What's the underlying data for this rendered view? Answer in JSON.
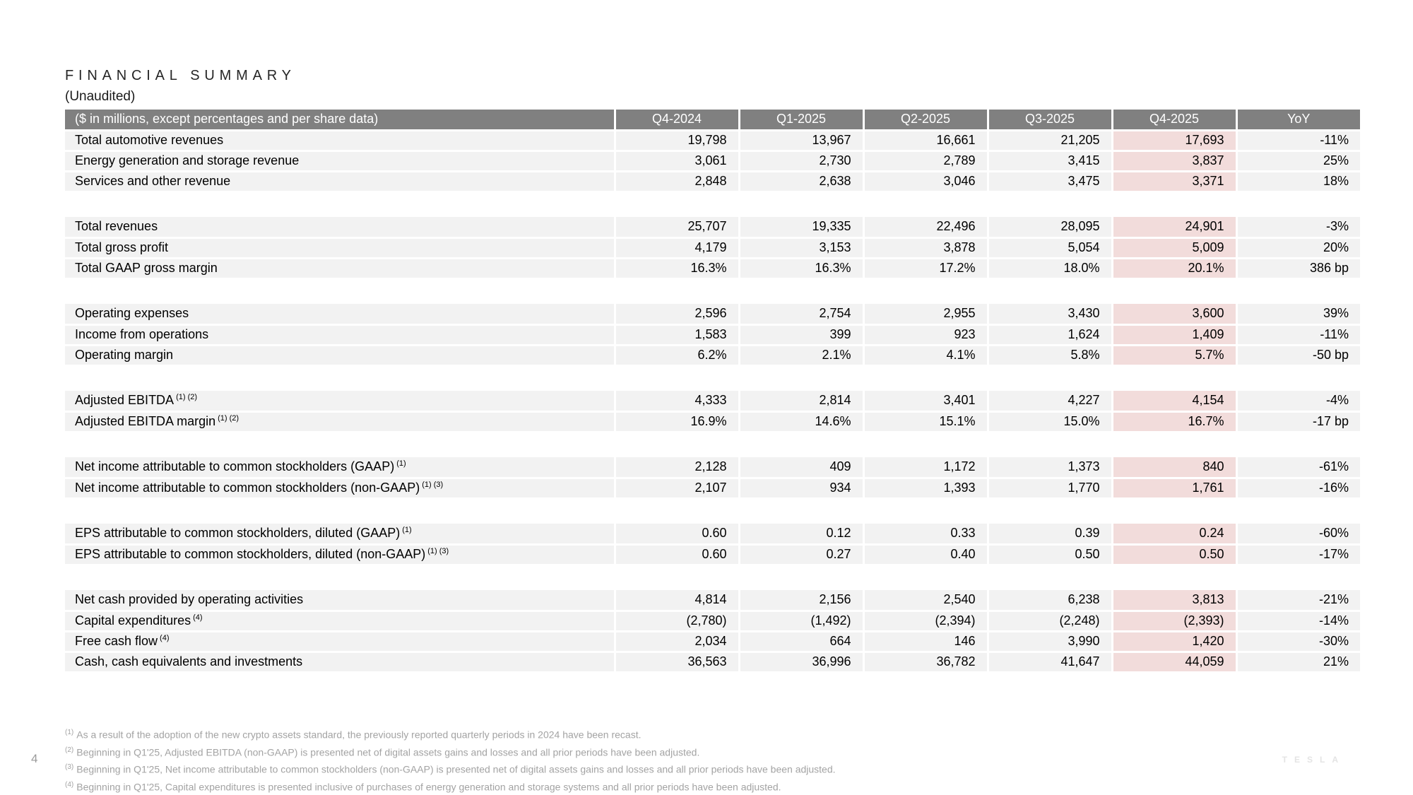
{
  "page": {
    "title": "FINANCIAL SUMMARY",
    "subtitle": "(Unaudited)",
    "page_number": "4",
    "brand": "TESLA"
  },
  "colors": {
    "header_bg": "#808080",
    "row_bg": "#f2f2f2",
    "highlight_bg": "#f2dcdb",
    "footnote_text": "#a3a3a3"
  },
  "table": {
    "label_header": "($ in millions, except percentages and per share data)",
    "columns": [
      "Q4-2024",
      "Q1-2025",
      "Q2-2025",
      "Q3-2025",
      "Q4-2025",
      "YoY"
    ],
    "highlight_column": "Q4-2025",
    "groups": [
      {
        "rows": [
          {
            "label": "Total automotive revenues",
            "sup": "",
            "values": [
              "19,798",
              "13,967",
              "16,661",
              "21,205",
              "17,693",
              "-11%"
            ]
          },
          {
            "label": "Energy generation and storage revenue",
            "sup": "",
            "values": [
              "3,061",
              "2,730",
              "2,789",
              "3,415",
              "3,837",
              "25%"
            ]
          },
          {
            "label": "Services and other revenue",
            "sup": "",
            "values": [
              "2,848",
              "2,638",
              "3,046",
              "3,475",
              "3,371",
              "18%"
            ]
          }
        ]
      },
      {
        "rows": [
          {
            "label": "Total revenues",
            "sup": "",
            "values": [
              "25,707",
              "19,335",
              "22,496",
              "28,095",
              "24,901",
              "-3%"
            ]
          },
          {
            "label": "Total gross profit",
            "sup": "",
            "values": [
              "4,179",
              "3,153",
              "3,878",
              "5,054",
              "5,009",
              "20%"
            ]
          },
          {
            "label": "Total GAAP gross margin",
            "sup": "",
            "values": [
              "16.3%",
              "16.3%",
              "17.2%",
              "18.0%",
              "20.1%",
              "386 bp"
            ]
          }
        ]
      },
      {
        "rows": [
          {
            "label": "Operating expenses",
            "sup": "",
            "values": [
              "2,596",
              "2,754",
              "2,955",
              "3,430",
              "3,600",
              "39%"
            ]
          },
          {
            "label": "Income from operations",
            "sup": "",
            "values": [
              "1,583",
              "399",
              "923",
              "1,624",
              "1,409",
              "-11%"
            ]
          },
          {
            "label": "Operating margin",
            "sup": "",
            "values": [
              "6.2%",
              "2.1%",
              "4.1%",
              "5.8%",
              "5.7%",
              "-50 bp"
            ]
          }
        ]
      },
      {
        "rows": [
          {
            "label": "Adjusted EBITDA",
            "sup": "(1) (2)",
            "values": [
              "4,333",
              "2,814",
              "3,401",
              "4,227",
              "4,154",
              "-4%"
            ]
          },
          {
            "label": "Adjusted EBITDA margin",
            "sup": "(1) (2)",
            "values": [
              "16.9%",
              "14.6%",
              "15.1%",
              "15.0%",
              "16.7%",
              "-17 bp"
            ]
          }
        ]
      },
      {
        "rows": [
          {
            "label": "Net income attributable to common stockholders (GAAP)",
            "sup": "(1)",
            "values": [
              "2,128",
              "409",
              "1,172",
              "1,373",
              "840",
              "-61%"
            ]
          },
          {
            "label": "Net income attributable to common stockholders (non-GAAP)",
            "sup": "(1) (3)",
            "values": [
              "2,107",
              "934",
              "1,393",
              "1,770",
              "1,761",
              "-16%"
            ]
          }
        ]
      },
      {
        "rows": [
          {
            "label": "EPS attributable to common stockholders, diluted (GAAP)",
            "sup": "(1)",
            "values": [
              "0.60",
              "0.12",
              "0.33",
              "0.39",
              "0.24",
              "-60%"
            ]
          },
          {
            "label": "EPS attributable to common stockholders, diluted (non-GAAP)",
            "sup": "(1) (3)",
            "values": [
              "0.60",
              "0.27",
              "0.40",
              "0.50",
              "0.50",
              "-17%"
            ]
          }
        ]
      },
      {
        "rows": [
          {
            "label": "Net cash provided by operating activities",
            "sup": "",
            "values": [
              "4,814",
              "2,156",
              "2,540",
              "6,238",
              "3,813",
              "-21%"
            ]
          },
          {
            "label": "Capital expenditures",
            "sup": "(4)",
            "values": [
              "(2,780)",
              "(1,492)",
              "(2,394)",
              "(2,248)",
              "(2,393)",
              "-14%"
            ]
          },
          {
            "label": "Free cash flow",
            "sup": "(4)",
            "values": [
              "2,034",
              "664",
              "146",
              "3,990",
              "1,420",
              "-30%"
            ]
          },
          {
            "label": "Cash, cash equivalents and investments",
            "sup": "",
            "values": [
              "36,563",
              "36,996",
              "36,782",
              "41,647",
              "44,059",
              "21%"
            ]
          }
        ]
      }
    ]
  },
  "footnotes": [
    {
      "sup": "(1)",
      "text": "As a result of the adoption of the new crypto assets standard, the previously reported quarterly periods in 2024 have been recast."
    },
    {
      "sup": "(2)",
      "text": "Beginning in Q1'25, Adjusted EBITDA (non-GAAP) is presented net of digital assets gains and losses and all prior periods have been adjusted."
    },
    {
      "sup": "(3)",
      "text": "Beginning in Q1'25, Net income attributable to common stockholders (non-GAAP) is presented net of digital assets gains and losses and all prior periods have been adjusted."
    },
    {
      "sup": "(4)",
      "text": "Beginning in Q1'25, Capital expenditures is presented inclusive of purchases of energy generation and storage systems and all prior periods have been adjusted."
    }
  ]
}
